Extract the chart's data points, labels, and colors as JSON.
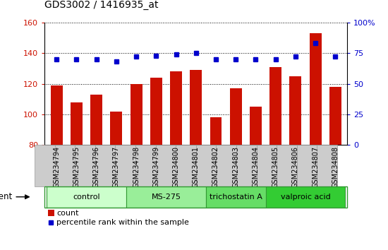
{
  "title": "GDS3002 / 1416935_at",
  "categories": [
    "GSM234794",
    "GSM234795",
    "GSM234796",
    "GSM234797",
    "GSM234798",
    "GSM234799",
    "GSM234800",
    "GSM234801",
    "GSM234802",
    "GSM234803",
    "GSM234804",
    "GSM234805",
    "GSM234806",
    "GSM234807",
    "GSM234808"
  ],
  "counts": [
    119,
    108,
    113,
    102,
    120,
    124,
    128,
    129,
    98,
    117,
    105,
    131,
    125,
    153,
    118
  ],
  "percentiles": [
    70,
    70,
    70,
    68,
    72,
    73,
    74,
    75,
    70,
    70,
    70,
    70,
    72,
    83,
    72
  ],
  "bar_color": "#cc1100",
  "dot_color": "#0000cc",
  "ylim_left": [
    80,
    160
  ],
  "ylim_right": [
    0,
    100
  ],
  "yticks_left": [
    80,
    100,
    120,
    140,
    160
  ],
  "yticks_right": [
    0,
    25,
    50,
    75,
    100
  ],
  "groups": [
    {
      "label": "control",
      "start": 0,
      "end": 3,
      "color": "#ccffcc"
    },
    {
      "label": "MS-275",
      "start": 4,
      "end": 7,
      "color": "#99ee99"
    },
    {
      "label": "trichostatin A",
      "start": 8,
      "end": 10,
      "color": "#66dd66"
    },
    {
      "label": "valproic acid",
      "start": 11,
      "end": 14,
      "color": "#33cc33"
    }
  ],
  "group_border_color": "#339933",
  "agent_label": "agent",
  "legend_count_label": "count",
  "legend_percentile_label": "percentile rank within the sample",
  "tick_label_color_left": "#cc1100",
  "tick_label_color_right": "#0000cc",
  "xticklabel_bg": "#cccccc",
  "xticklabel_border": "#999999"
}
